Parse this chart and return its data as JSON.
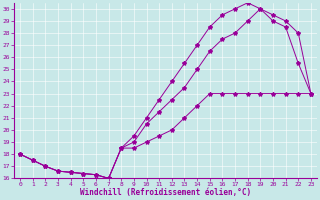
{
  "xlabel": "Windchill (Refroidissement éolien,°C)",
  "bg_color": "#c8e8e8",
  "line_color": "#990099",
  "xlim": [
    -0.5,
    23.5
  ],
  "ylim": [
    16,
    30.5
  ],
  "xticks": [
    0,
    1,
    2,
    3,
    4,
    5,
    6,
    7,
    8,
    9,
    10,
    11,
    12,
    13,
    14,
    15,
    16,
    17,
    18,
    19,
    20,
    21,
    22,
    23
  ],
  "yticks": [
    16,
    17,
    18,
    19,
    20,
    21,
    22,
    23,
    24,
    25,
    26,
    27,
    28,
    29,
    30
  ],
  "line1_x": [
    0,
    1,
    2,
    3,
    4,
    5,
    6,
    7,
    8,
    9,
    10,
    11,
    12,
    13,
    14,
    15,
    16,
    17,
    18,
    19,
    20,
    21,
    22,
    23
  ],
  "line1_y": [
    18,
    17.5,
    17,
    16.6,
    16.5,
    16.4,
    16.3,
    16.0,
    18.5,
    19.0,
    20.5,
    21.5,
    22.5,
    23.5,
    25.0,
    26.5,
    27.5,
    28.0,
    29.0,
    30.0,
    29.0,
    28.5,
    25.5,
    23.0
  ],
  "line2_x": [
    0,
    1,
    2,
    3,
    4,
    5,
    6,
    7,
    8,
    9,
    10,
    11,
    12,
    13,
    14,
    15,
    16,
    17,
    18,
    19,
    20,
    21,
    22,
    23
  ],
  "line2_y": [
    18,
    17.5,
    17,
    16.6,
    16.5,
    16.4,
    16.3,
    16.0,
    18.5,
    19.5,
    21.0,
    22.5,
    24.0,
    25.5,
    27.0,
    28.5,
    29.5,
    30.0,
    30.5,
    30.0,
    29.5,
    29.0,
    28.0,
    23.0
  ],
  "line3_x": [
    0,
    1,
    2,
    3,
    4,
    5,
    6,
    7,
    8,
    9,
    10,
    11,
    12,
    13,
    14,
    15,
    16,
    17,
    18,
    19,
    20,
    21,
    22,
    23
  ],
  "line3_y": [
    18,
    17.5,
    17,
    16.6,
    16.5,
    16.4,
    16.3,
    16.0,
    18.5,
    18.5,
    19.0,
    19.5,
    20.0,
    21.0,
    22.0,
    23.0,
    23.0,
    23.0,
    23.0,
    23.0,
    23.0,
    23.0,
    23.0,
    23.0
  ]
}
